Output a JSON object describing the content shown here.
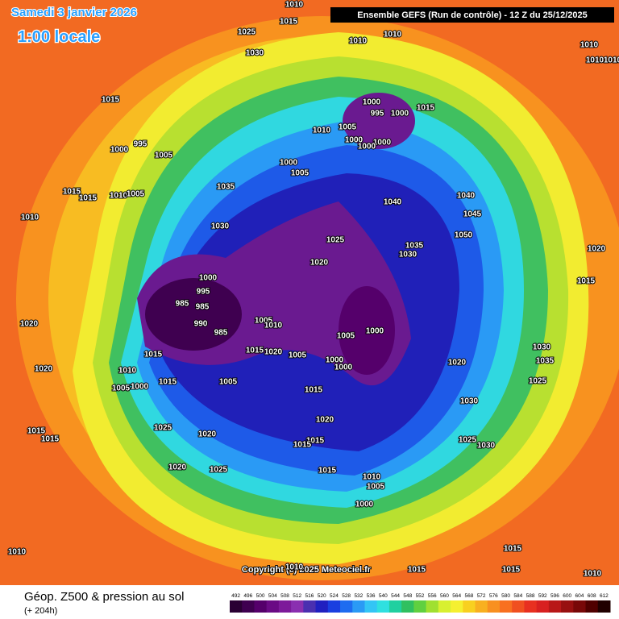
{
  "header": {
    "date": "Samedi 3 janvier 2026",
    "time": "1:00 locale",
    "run": "Ensemble GEFS  (Run de contrôle)  -  12 Z du 25/12/2025"
  },
  "map": {
    "pressure_labels": [
      1010,
      1015,
      1025,
      1030,
      1010,
      1010,
      1010,
      1010,
      1010,
      1015,
      1000,
      995,
      1000,
      1015,
      1010,
      1005,
      1000,
      1000,
      1000,
      995,
      1000,
      1005,
      1000,
      1005,
      1035,
      1015,
      1015,
      1010,
      1005,
      1040,
      1040,
      1045,
      1010,
      1030,
      1025,
      1050,
      1035,
      1030,
      1020,
      1020,
      1000,
      995,
      985,
      985,
      990,
      985,
      1015,
      1005,
      1010,
      1005,
      1000,
      1020,
      1015,
      1015,
      1020,
      1005,
      1000,
      1000,
      1020,
      1030,
      1035,
      1025,
      1020,
      1010,
      1015,
      1005,
      1000,
      1005,
      1015,
      1030,
      1020,
      1025,
      1020,
      1015,
      1015,
      1015,
      1015,
      1025,
      1030,
      1020,
      1025,
      1015,
      1010,
      1005,
      1000,
      1010,
      1015,
      1010,
      1015,
      1015,
      1010
    ]
  },
  "copyright": "Copyright (c) 2025 Meteociel.fr",
  "footer": {
    "title": "Géop. Z500 & pression au sol",
    "lead": "(+ 204h)"
  },
  "scale": {
    "values": [
      492,
      496,
      500,
      504,
      508,
      512,
      516,
      520,
      524,
      528,
      532,
      536,
      540,
      544,
      548,
      552,
      556,
      560,
      564,
      568,
      572,
      576,
      580,
      584,
      588,
      592,
      596,
      600,
      604,
      608,
      612
    ],
    "colors": [
      "#2a0033",
      "#3f0050",
      "#55006b",
      "#6a0b85",
      "#7d1a9a",
      "#8a2fb0",
      "#4a2fb0",
      "#2020c0",
      "#1a3fe0",
      "#1e6cf0",
      "#2a9af5",
      "#33c5f5",
      "#2fe0e0",
      "#20d0a0",
      "#30c060",
      "#60d040",
      "#a0e030",
      "#d8f030",
      "#f5f030",
      "#f8d020",
      "#f8b020",
      "#f89020",
      "#f87020",
      "#f05020",
      "#e83020",
      "#d82020",
      "#b81818",
      "#981010",
      "#780808",
      "#500000",
      "#200000"
    ]
  }
}
